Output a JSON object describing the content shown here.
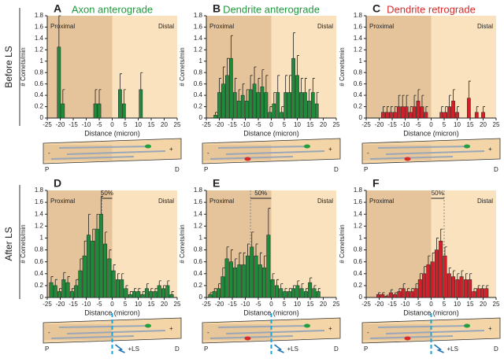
{
  "row_labels": [
    "Before LS",
    "After LS"
  ],
  "chart_data": [
    {
      "type": "bar",
      "letter": "A",
      "title": "Axon anterograde",
      "title_color": "#1e9a3c",
      "color": "#1e8a3a",
      "ylabel": "# Comets/min",
      "xlabel": "Distance (micron)",
      "x": [
        -20.5,
        -19,
        -6.5,
        -5,
        3,
        4.5,
        11
      ],
      "values": [
        1.25,
        0.25,
        0.25,
        0.25,
        0.5,
        0.25,
        0.5
      ],
      "errors": [
        0.55,
        0.25,
        0.25,
        0.25,
        0.28,
        0.25,
        0.3
      ],
      "xlim": [
        -25,
        25
      ],
      "xticks": [
        -25,
        -20,
        -15,
        -10,
        -5,
        0,
        5,
        10,
        15,
        20,
        25
      ],
      "ylim": [
        0,
        1.8
      ],
      "yticks": [
        0,
        0.2,
        0.4,
        0.6,
        0.8,
        1,
        1.2,
        1.4,
        1.6,
        1.8
      ],
      "regions": {
        "left": "Proximal",
        "right": "Distal"
      },
      "cartoon": {
        "start": "P",
        "end": "D",
        "plus": "+",
        "minus": "-"
      }
    },
    {
      "type": "bar",
      "letter": "B",
      "title": "Dendrite anterograde",
      "title_color": "#1e9a3c",
      "color": "#1e8a3a",
      "ylabel": "# Comets/min",
      "xlabel": "Distance (micron)",
      "x": [
        -21.5,
        -20,
        -18.5,
        -17,
        -15.5,
        -14,
        -12.5,
        -11,
        -9.5,
        -8,
        -6.5,
        -5,
        -3.5,
        -2,
        -0.5,
        1,
        2.5,
        4,
        5.5,
        7,
        8.5,
        10,
        11.5,
        13,
        14.5,
        16,
        17.5
      ],
      "values": [
        0.05,
        0.45,
        0.6,
        0.75,
        1.05,
        0.45,
        0.3,
        0.4,
        0.3,
        0.5,
        0.6,
        0.45,
        0.55,
        0.45,
        0.1,
        0.25,
        0.45,
        0.1,
        0.45,
        0.45,
        1.05,
        0.75,
        0.45,
        0.45,
        0.3,
        0.45,
        0.25
      ],
      "errors": [
        0.05,
        0.25,
        0.3,
        0.3,
        0.4,
        0.25,
        0.2,
        0.2,
        0.2,
        0.25,
        0.3,
        0.25,
        0.3,
        0.3,
        0.1,
        0.2,
        0.3,
        0.1,
        0.3,
        0.3,
        0.45,
        0.35,
        0.25,
        0.25,
        0.2,
        0.25,
        0.2
      ],
      "xlim": [
        -25,
        25
      ],
      "xticks": [
        -25,
        -20,
        -15,
        -10,
        -5,
        0,
        5,
        10,
        15,
        20,
        25
      ],
      "ylim": [
        0,
        1.8
      ],
      "yticks": [
        0,
        0.2,
        0.4,
        0.6,
        0.8,
        1,
        1.2,
        1.4,
        1.6,
        1.8
      ],
      "regions": {
        "left": "Proximal",
        "right": "Distal"
      },
      "cartoon": {
        "start": "P",
        "end": "D",
        "plus": "+",
        "minus": "-"
      }
    },
    {
      "type": "bar",
      "letter": "C",
      "title": "Dendrite retrograde",
      "title_color": "#d42a2a",
      "color": "#d0202a",
      "ylabel": "# Comets/min",
      "xlabel": "Distance (micron)",
      "x": [
        -18.5,
        -17,
        -15.5,
        -14,
        -12.5,
        -11,
        -9.5,
        -8,
        -6.5,
        -5,
        -3.5,
        -2,
        4,
        5.5,
        7,
        8.5,
        10,
        14.5,
        17.5,
        20
      ],
      "values": [
        0.1,
        0.1,
        0.1,
        0.1,
        0.2,
        0.2,
        0.2,
        0.1,
        0.2,
        0.3,
        0.2,
        0.1,
        0.1,
        0.1,
        0.2,
        0.3,
        0.1,
        0.35,
        0.1,
        0.1
      ],
      "errors": [
        0.1,
        0.1,
        0.1,
        0.1,
        0.2,
        0.2,
        0.2,
        0.1,
        0.2,
        0.2,
        0.2,
        0.1,
        0.1,
        0.1,
        0.2,
        0.2,
        0.1,
        0.3,
        0.1,
        0.1
      ],
      "xlim": [
        -25,
        25
      ],
      "xticks": [
        -25,
        -20,
        -15,
        -10,
        -5,
        0,
        5,
        10,
        15,
        20,
        25
      ],
      "ylim": [
        0,
        1.8
      ],
      "yticks": [
        0,
        0.2,
        0.4,
        0.6,
        0.8,
        1,
        1.2,
        1.4,
        1.6,
        1.8
      ],
      "regions": {
        "left": "Proximal",
        "right": "Distal"
      },
      "cartoon": {
        "start": "P",
        "end": "D",
        "plus": "+",
        "minus": "-"
      }
    },
    {
      "type": "bar",
      "letter": "D",
      "color": "#1e8a3a",
      "ylabel": "# Comets/min",
      "xlabel": "Distance (micron)",
      "x": [
        -23.5,
        -21.9,
        -20.3,
        -18.7,
        -17.1,
        -15.5,
        -13.9,
        -12.3,
        -10.7,
        -9.1,
        -7.5,
        -5.9,
        -4.3,
        -2.7,
        -1.1,
        0.5,
        2.1,
        3.7,
        5.3,
        6.9,
        8.5,
        10.1,
        11.7,
        13.3,
        14.9,
        16.5,
        18.1,
        19.7,
        21.3,
        22.9
      ],
      "values": [
        0.25,
        0.2,
        0.1,
        0.3,
        0.25,
        0.1,
        0.2,
        0.45,
        0.7,
        1.05,
        0.95,
        1.15,
        1.4,
        0.9,
        0.65,
        0.45,
        0.3,
        0.3,
        0.15,
        0.05,
        0.1,
        0.1,
        0.05,
        0.15,
        0.1,
        0.1,
        0.2,
        0.15,
        0.2,
        0.05
      ],
      "errors": [
        0.1,
        0.1,
        0.05,
        0.12,
        0.1,
        0.05,
        0.1,
        0.2,
        0.25,
        0.35,
        0.2,
        0.25,
        0.3,
        0.2,
        0.15,
        0.1,
        0.1,
        0.1,
        0.05,
        0.05,
        0.05,
        0.05,
        0.05,
        0.08,
        0.05,
        0.05,
        0.08,
        0.05,
        0.08,
        0.05
      ],
      "xlim": [
        -25,
        25
      ],
      "xticks": [
        -25,
        -20,
        -15,
        -10,
        -5,
        0,
        5,
        10,
        15,
        20,
        25
      ],
      "ylim": [
        0,
        1.8
      ],
      "yticks": [
        0,
        0.2,
        0.4,
        0.6,
        0.8,
        1,
        1.2,
        1.4,
        1.6,
        1.8
      ],
      "regions": {
        "left": "Proximal",
        "right": "Distal"
      },
      "annotation": {
        "text": "50%",
        "x": -4
      },
      "cartoon": {
        "start": "P",
        "end": "D",
        "plus": "+",
        "minus": "-",
        "treatment": "+LS"
      }
    },
    {
      "type": "bar",
      "letter": "E",
      "color": "#1e8a3a",
      "ylabel": "# Comets/min",
      "xlabel": "Distance (micron)",
      "x": [
        -23.5,
        -21.9,
        -20.3,
        -18.7,
        -17.1,
        -15.5,
        -13.9,
        -12.3,
        -10.7,
        -9.1,
        -7.5,
        -5.9,
        -4.3,
        -2.7,
        -1.1,
        0.5,
        2.1,
        3.7,
        5.3,
        6.9,
        8.5,
        10.1,
        11.7,
        13.3,
        14.9,
        16.5,
        18.1
      ],
      "values": [
        0.05,
        0.1,
        0.15,
        0.35,
        0.65,
        0.6,
        0.5,
        0.55,
        0.55,
        0.7,
        0.85,
        0.7,
        0.55,
        0.5,
        1.05,
        0.3,
        0.2,
        0.15,
        0.1,
        0.1,
        0.15,
        0.2,
        0.15,
        0.1,
        0.25,
        0.15,
        0.1
      ],
      "errors": [
        0.03,
        0.05,
        0.08,
        0.15,
        0.2,
        0.2,
        0.15,
        0.2,
        0.2,
        0.2,
        0.25,
        0.2,
        0.2,
        0.2,
        0.45,
        0.1,
        0.1,
        0.08,
        0.05,
        0.05,
        0.05,
        0.08,
        0.08,
        0.05,
        0.08,
        0.05,
        0.05
      ],
      "xlim": [
        -25,
        25
      ],
      "xticks": [
        -25,
        -20,
        -15,
        -10,
        -5,
        0,
        5,
        10,
        15,
        20,
        25
      ],
      "ylim": [
        0,
        1.8
      ],
      "yticks": [
        0,
        0.2,
        0.4,
        0.6,
        0.8,
        1,
        1.2,
        1.4,
        1.6,
        1.8
      ],
      "regions": {
        "left": "Proximal",
        "right": "Distal"
      },
      "annotation": {
        "text": "50%",
        "x": -8
      },
      "cartoon": {
        "start": "P",
        "end": "D",
        "plus": "+",
        "minus": "-",
        "treatment": "+LS"
      }
    },
    {
      "type": "bar",
      "letter": "F",
      "color": "#d0202a",
      "ylabel": "# Comets/min",
      "xlabel": "Distance (micron)",
      "x": [
        -20.3,
        -18.7,
        -17.1,
        -15.5,
        -13.9,
        -12.3,
        -10.7,
        -9.1,
        -7.5,
        -5.9,
        -4.3,
        -2.7,
        -1.1,
        0.5,
        2.1,
        3.7,
        5.3,
        6.9,
        8.5,
        10.1,
        11.7,
        13.3,
        14.9,
        16.5,
        18.1,
        19.7,
        21.3
      ],
      "values": [
        0.05,
        0.05,
        0.02,
        0.08,
        0.05,
        0.1,
        0.15,
        0.1,
        0.1,
        0.15,
        0.3,
        0.4,
        0.55,
        0.6,
        0.8,
        0.95,
        0.7,
        0.4,
        0.35,
        0.3,
        0.35,
        0.3,
        0.3,
        0.1,
        0.15,
        0.15,
        0.15
      ],
      "errors": [
        0.03,
        0.03,
        0.02,
        0.05,
        0.03,
        0.05,
        0.08,
        0.05,
        0.05,
        0.08,
        0.1,
        0.12,
        0.15,
        0.15,
        0.2,
        0.2,
        0.15,
        0.1,
        0.1,
        0.1,
        0.1,
        0.1,
        0.1,
        0.05,
        0.05,
        0.05,
        0.05
      ],
      "xlim": [
        -25,
        25
      ],
      "xticks": [
        -25,
        -20,
        -15,
        -10,
        -5,
        0,
        5,
        10,
        15,
        20,
        25
      ],
      "ylim": [
        0,
        1.8
      ],
      "yticks": [
        0,
        0.2,
        0.4,
        0.6,
        0.8,
        1,
        1.2,
        1.4,
        1.6,
        1.8
      ],
      "regions": {
        "left": "Proximal",
        "right": "Distal"
      },
      "annotation": {
        "text": "50%",
        "x": 5
      },
      "cartoon": {
        "start": "P",
        "end": "D",
        "plus": "+",
        "minus": "-",
        "treatment": "+LS"
      }
    }
  ]
}
